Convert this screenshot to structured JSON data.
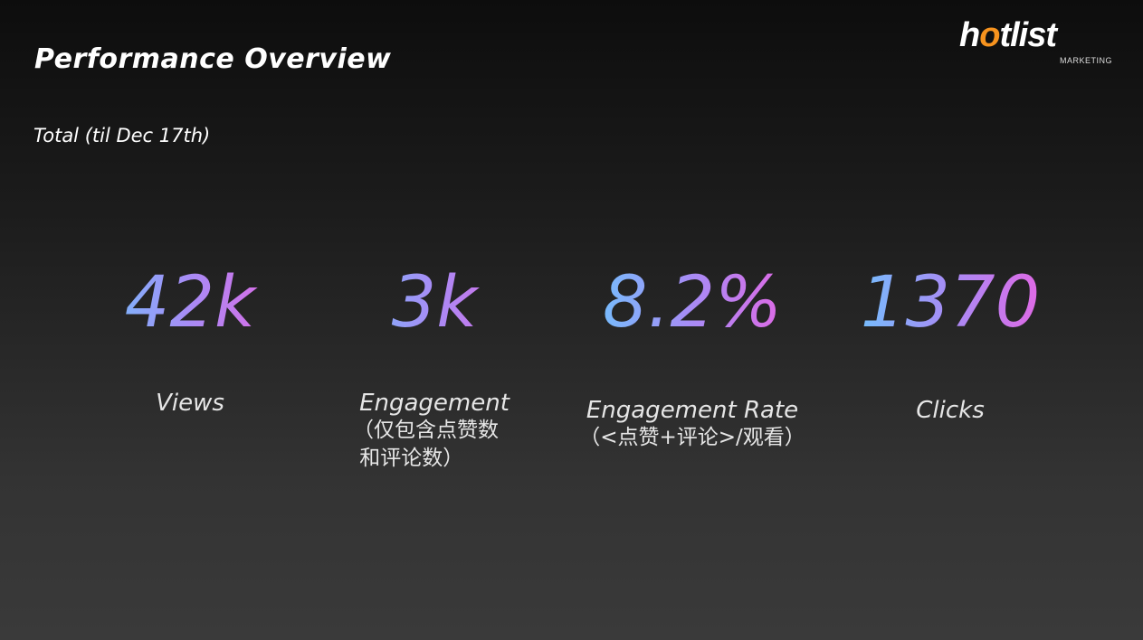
{
  "header": {
    "title": "Performance Overview",
    "subtitle": "Total (til Dec 17th)"
  },
  "logo": {
    "word_a": "h",
    "word_b": "o",
    "word_c": "tlist",
    "tagline": "MARKETING"
  },
  "colors": {
    "gradient_start": "#66ccff",
    "gradient_mid": "#a88bf5",
    "gradient_end": "#f05fe0",
    "logo_flame": "#f7931e"
  },
  "metrics": [
    {
      "value": "42k",
      "label": "Views",
      "note": ""
    },
    {
      "value": "3k",
      "label": "Engagement",
      "note": "（仅包含点赞数\n 和评论数）"
    },
    {
      "value": "8.2%",
      "label": "Engagement Rate",
      "note": "（<点赞+评论>/观看）"
    },
    {
      "value": "1370",
      "label": "Clicks",
      "note": ""
    }
  ]
}
